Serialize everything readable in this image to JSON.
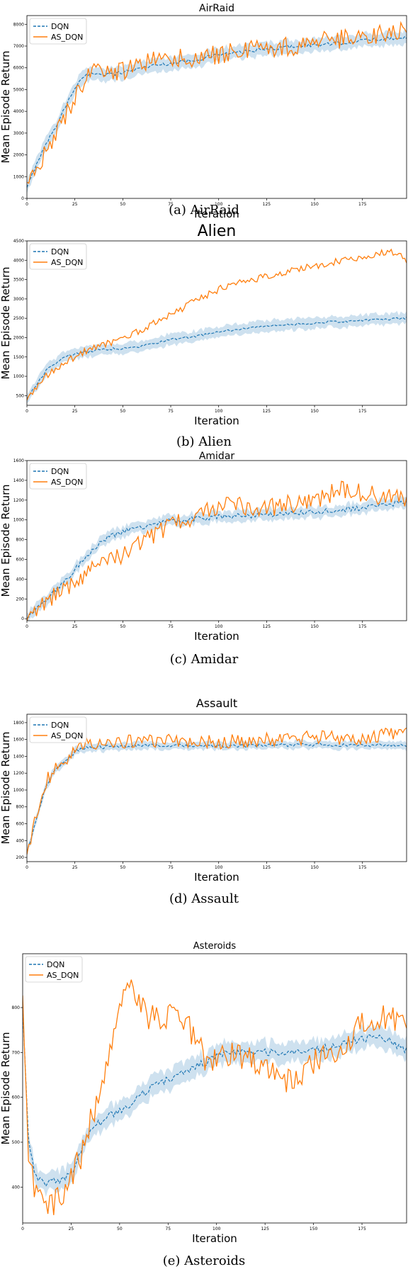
{
  "chart_data": [
    {
      "type": "line",
      "title": "AirRaid",
      "caption": "(a) AirRaid",
      "xlabel": "Iteration",
      "ylabel": "Mean Episode Return",
      "xlim": [
        0,
        198
      ],
      "ylim": [
        0,
        8400
      ],
      "xticks": [
        0,
        25,
        50,
        75,
        100,
        125,
        150,
        175
      ],
      "yticks": [
        0,
        1000,
        2000,
        3000,
        4000,
        5000,
        6000,
        7000,
        8000
      ],
      "legend_position": "top-left",
      "series": [
        {
          "name": "DQN",
          "color": "#1f77b4",
          "style": "dashed",
          "band": 300,
          "noise": 80,
          "points": [
            [
              0,
              450
            ],
            [
              5,
              1600
            ],
            [
              10,
              2500
            ],
            [
              15,
              3300
            ],
            [
              20,
              4200
            ],
            [
              25,
              5100
            ],
            [
              30,
              5600
            ],
            [
              35,
              5750
            ],
            [
              45,
              5700
            ],
            [
              55,
              5900
            ],
            [
              65,
              6100
            ],
            [
              75,
              6200
            ],
            [
              90,
              6400
            ],
            [
              100,
              6600
            ],
            [
              120,
              6800
            ],
            [
              140,
              7000
            ],
            [
              160,
              7100
            ],
            [
              180,
              7300
            ],
            [
              198,
              7400
            ]
          ]
        },
        {
          "name": "AS_DQN",
          "color": "#ff7f0e",
          "style": "solid",
          "noise": 450,
          "points": [
            [
              0,
              300
            ],
            [
              5,
              1500
            ],
            [
              10,
              2200
            ],
            [
              15,
              2800
            ],
            [
              20,
              3800
            ],
            [
              25,
              4700
            ],
            [
              30,
              5400
            ],
            [
              35,
              5900
            ],
            [
              45,
              5700
            ],
            [
              55,
              6000
            ],
            [
              65,
              6300
            ],
            [
              75,
              6400
            ],
            [
              90,
              6500
            ],
            [
              100,
              6600
            ],
            [
              120,
              6900
            ],
            [
              140,
              7000
            ],
            [
              160,
              7300
            ],
            [
              180,
              7500
            ],
            [
              198,
              7700
            ]
          ]
        }
      ]
    },
    {
      "type": "line",
      "title": "Alien",
      "caption": "(b) Alien",
      "xlabel": "Iteration",
      "ylabel": "Mean Episode Return",
      "xlim": [
        0,
        198
      ],
      "ylim": [
        250,
        4500
      ],
      "xticks": [
        0,
        25,
        50,
        75,
        100,
        125,
        150,
        175
      ],
      "yticks": [
        500,
        1000,
        1500,
        2000,
        2500,
        3000,
        3500,
        4000,
        4500
      ],
      "legend_position": "top-left",
      "series": [
        {
          "name": "DQN",
          "color": "#1f77b4",
          "style": "dashed",
          "band": 140,
          "noise": 30,
          "points": [
            [
              0,
              420
            ],
            [
              10,
              1150
            ],
            [
              20,
              1520
            ],
            [
              30,
              1620
            ],
            [
              40,
              1700
            ],
            [
              50,
              1720
            ],
            [
              60,
              1780
            ],
            [
              75,
              1950
            ],
            [
              90,
              2050
            ],
            [
              100,
              2150
            ],
            [
              125,
              2300
            ],
            [
              150,
              2380
            ],
            [
              175,
              2450
            ],
            [
              198,
              2500
            ]
          ]
        },
        {
          "name": "AS_DQN",
          "color": "#ff7f0e",
          "style": "solid",
          "noise": 90,
          "points": [
            [
              0,
              420
            ],
            [
              10,
              1000
            ],
            [
              20,
              1350
            ],
            [
              30,
              1650
            ],
            [
              40,
              1800
            ],
            [
              50,
              2000
            ],
            [
              60,
              2200
            ],
            [
              75,
              2600
            ],
            [
              90,
              3000
            ],
            [
              100,
              3250
            ],
            [
              125,
              3600
            ],
            [
              150,
              3850
            ],
            [
              175,
              4100
            ],
            [
              190,
              4250
            ],
            [
              198,
              4000
            ]
          ]
        }
      ]
    },
    {
      "type": "line",
      "title": "Amidar",
      "caption": "(c) Amidar",
      "xlabel": "Iteration",
      "ylabel": "Mean Episode Return",
      "xlim": [
        0,
        198
      ],
      "ylim": [
        -20,
        1600
      ],
      "xticks": [
        0,
        25,
        50,
        75,
        100,
        125,
        150,
        175
      ],
      "yticks": [
        0,
        200,
        400,
        600,
        800,
        1000,
        1200,
        1400,
        1600
      ],
      "legend_position": "top-left",
      "series": [
        {
          "name": "DQN",
          "color": "#1f77b4",
          "style": "dashed",
          "band": 55,
          "noise": 25,
          "points": [
            [
              0,
              10
            ],
            [
              10,
              200
            ],
            [
              20,
              380
            ],
            [
              30,
              620
            ],
            [
              40,
              800
            ],
            [
              50,
              880
            ],
            [
              60,
              930
            ],
            [
              75,
              990
            ],
            [
              100,
              1030
            ],
            [
              125,
              1050
            ],
            [
              150,
              1080
            ],
            [
              175,
              1120
            ],
            [
              198,
              1180
            ]
          ]
        },
        {
          "name": "AS_DQN",
          "color": "#ff7f0e",
          "style": "solid",
          "noise": 95,
          "points": [
            [
              0,
              10
            ],
            [
              10,
              180
            ],
            [
              20,
              320
            ],
            [
              30,
              440
            ],
            [
              40,
              550
            ],
            [
              50,
              650
            ],
            [
              60,
              780
            ],
            [
              75,
              950
            ],
            [
              90,
              1050
            ],
            [
              100,
              1150
            ],
            [
              125,
              1120
            ],
            [
              150,
              1200
            ],
            [
              165,
              1320
            ],
            [
              180,
              1250
            ],
            [
              198,
              1220
            ]
          ]
        }
      ]
    },
    {
      "type": "line",
      "title": "Assault",
      "caption": "(d) Assault",
      "xlabel": "Iteration",
      "ylabel": "Mean Episode Return",
      "xlim": [
        0,
        198
      ],
      "ylim": [
        150,
        1900
      ],
      "xticks": [
        0,
        25,
        50,
        75,
        100,
        125,
        150,
        175
      ],
      "yticks": [
        200,
        400,
        600,
        800,
        1000,
        1200,
        1400,
        1600,
        1800
      ],
      "legend_position": "top-left",
      "series": [
        {
          "name": "DQN",
          "color": "#1f77b4",
          "style": "dashed",
          "band": 45,
          "noise": 20,
          "points": [
            [
              0,
              250
            ],
            [
              5,
              650
            ],
            [
              10,
              1050
            ],
            [
              15,
              1250
            ],
            [
              20,
              1350
            ],
            [
              25,
              1450
            ],
            [
              30,
              1500
            ],
            [
              50,
              1520
            ],
            [
              75,
              1530
            ],
            [
              100,
              1520
            ],
            [
              125,
              1530
            ],
            [
              150,
              1540
            ],
            [
              175,
              1530
            ],
            [
              198,
              1530
            ]
          ]
        },
        {
          "name": "AS_DQN",
          "color": "#ff7f0e",
          "style": "solid",
          "noise": 85,
          "points": [
            [
              0,
              250
            ],
            [
              5,
              700
            ],
            [
              10,
              1100
            ],
            [
              15,
              1250
            ],
            [
              20,
              1320
            ],
            [
              25,
              1450
            ],
            [
              30,
              1550
            ],
            [
              50,
              1580
            ],
            [
              75,
              1600
            ],
            [
              100,
              1570
            ],
            [
              125,
              1600
            ],
            [
              150,
              1620
            ],
            [
              175,
              1620
            ],
            [
              198,
              1680
            ]
          ]
        }
      ]
    },
    {
      "type": "line",
      "title": "Asteroids",
      "caption": "(e) Asteroids",
      "xlabel": "Iteration",
      "ylabel": "Mean Episode Return",
      "xlim": [
        0,
        198
      ],
      "ylim": [
        320,
        920
      ],
      "xticks": [
        0,
        25,
        50,
        75,
        100,
        125,
        150,
        175
      ],
      "yticks": [
        400,
        500,
        600,
        700,
        800
      ],
      "legend_position": "top-left",
      "series": [
        {
          "name": "DQN",
          "color": "#1f77b4",
          "style": "dashed",
          "band": 22,
          "noise": 8,
          "points": [
            [
              0,
              800
            ],
            [
              3,
              500
            ],
            [
              7,
              420
            ],
            [
              12,
              410
            ],
            [
              20,
              415
            ],
            [
              25,
              430
            ],
            [
              35,
              530
            ],
            [
              45,
              560
            ],
            [
              55,
              580
            ],
            [
              65,
              620
            ],
            [
              75,
              640
            ],
            [
              85,
              660
            ],
            [
              95,
              680
            ],
            [
              105,
              700
            ],
            [
              125,
              700
            ],
            [
              150,
              705
            ],
            [
              175,
              730
            ],
            [
              185,
              735
            ],
            [
              198,
              705
            ]
          ]
        },
        {
          "name": "AS_DQN",
          "color": "#ff7f0e",
          "style": "solid",
          "noise": 30,
          "points": [
            [
              0,
              820
            ],
            [
              3,
              470
            ],
            [
              7,
              380
            ],
            [
              12,
              350
            ],
            [
              20,
              380
            ],
            [
              30,
              470
            ],
            [
              40,
              620
            ],
            [
              48,
              760
            ],
            [
              55,
              860
            ],
            [
              65,
              780
            ],
            [
              75,
              780
            ],
            [
              85,
              760
            ],
            [
              95,
              680
            ],
            [
              105,
              700
            ],
            [
              115,
              690
            ],
            [
              125,
              670
            ],
            [
              135,
              630
            ],
            [
              145,
              660
            ],
            [
              155,
              690
            ],
            [
              165,
              720
            ],
            [
              175,
              760
            ],
            [
              185,
              780
            ],
            [
              198,
              760
            ]
          ]
        }
      ]
    }
  ]
}
